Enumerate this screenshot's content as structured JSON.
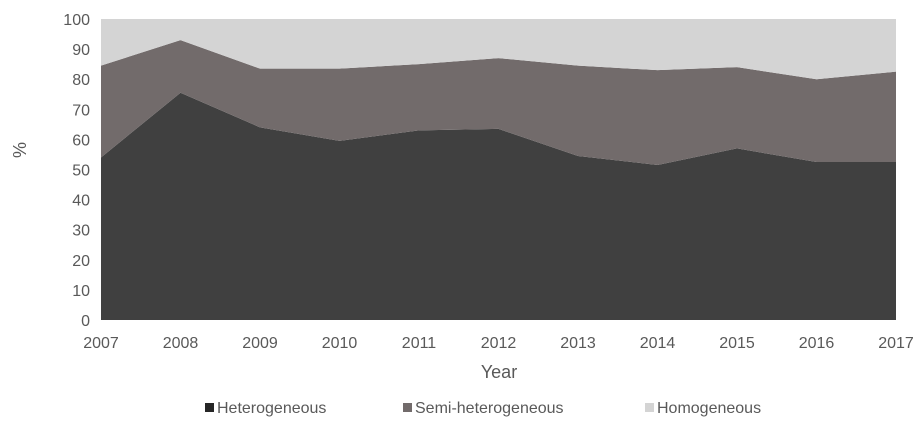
{
  "chart_data": {
    "type": "area",
    "stacked": true,
    "x": [
      "2007",
      "2008",
      "2009",
      "2010",
      "2011",
      "2012",
      "2013",
      "2014",
      "2015",
      "2016",
      "2017"
    ],
    "series": [
      {
        "name": "Heterogeneous",
        "color": "#404040",
        "values": [
          54,
          75.5,
          64,
          59.5,
          63,
          63.5,
          54.5,
          51.5,
          57,
          52.5,
          52.5
        ]
      },
      {
        "name": "Semi-heterogeneous",
        "color": "#726b6b",
        "values": [
          30.5,
          17.5,
          19.5,
          24,
          22,
          23.5,
          30,
          31.5,
          27,
          27.5,
          30
        ]
      },
      {
        "name": "Homogeneous",
        "color": "#d4d4d4",
        "values": [
          15.5,
          7,
          16.5,
          16.5,
          15,
          13,
          15.5,
          17,
          16,
          20,
          17.5
        ]
      }
    ],
    "xlabel": "Year",
    "ylabel": "%",
    "ylim": [
      0,
      100
    ],
    "yticks": [
      0,
      10,
      20,
      30,
      40,
      50,
      60,
      70,
      80,
      90,
      100
    ],
    "grid": false,
    "legend": "bottom"
  }
}
